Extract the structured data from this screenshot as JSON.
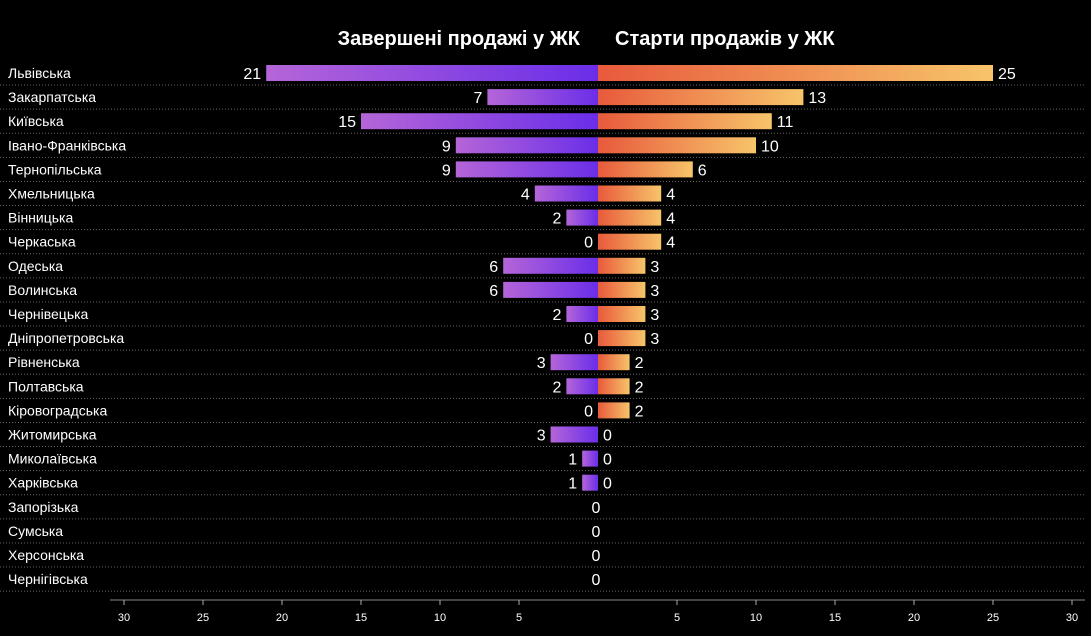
{
  "chart_data": {
    "type": "bar",
    "subtype": "diverging-horizontal",
    "series": [
      {
        "name": "Завершені продажі у ЖК",
        "side": "left",
        "values": [
          21,
          7,
          15,
          9,
          9,
          4,
          2,
          0,
          6,
          6,
          2,
          0,
          3,
          2,
          0,
          3,
          1,
          1,
          0,
          0,
          0,
          0
        ]
      },
      {
        "name": "Старти продажів у ЖК",
        "side": "right",
        "values": [
          25,
          13,
          11,
          10,
          6,
          4,
          4,
          4,
          3,
          3,
          3,
          3,
          2,
          2,
          2,
          0,
          0,
          0,
          0,
          0,
          0,
          0
        ]
      }
    ],
    "categories": [
      "Львівська",
      "Закарпатська",
      "Київська",
      "Івано-Франківська",
      "Тернопільська",
      "Хмельницька",
      "Вінницька",
      "Черкаська",
      "Одеська",
      "Волинська",
      "Чернівецька",
      "Дніпропетровська",
      "Рівненська",
      "Полтавська",
      "Кіровоградська",
      "Житомирська",
      "Миколаївська",
      "Харківська",
      "Запорізька",
      "Сумська",
      "Херсонська",
      "Чернігівська"
    ],
    "xlim": [
      -30,
      30
    ],
    "x_ticks_left": [
      "30",
      "25",
      "20",
      "15",
      "10",
      "5"
    ],
    "x_ticks_right": [
      "5",
      "10",
      "15",
      "20",
      "25",
      "30"
    ],
    "grid": false,
    "row_separators": "dotted",
    "colors": {
      "background": "#000000",
      "left_gradient": [
        "#b565d8",
        "#6a2ee8"
      ],
      "right_gradient": [
        "#e85a3c",
        "#f7c46a"
      ],
      "text": "#ffffff",
      "separator": "#666666"
    }
  }
}
